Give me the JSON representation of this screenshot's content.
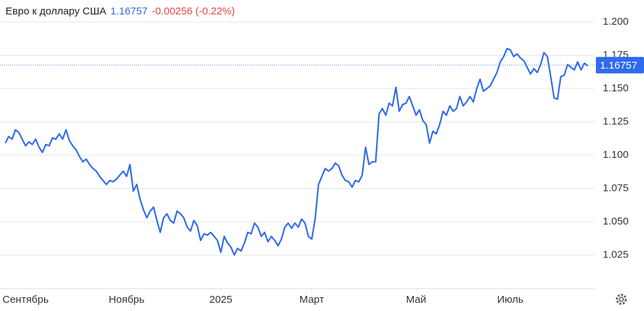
{
  "chart_data": {
    "type": "line",
    "title": "Евро к доллару США",
    "last_value": 1.16757,
    "change_label": "-0.00256 (-0.22%)",
    "color": "#2f6bed",
    "grid": true,
    "ylim": [
      1.0,
      1.21
    ],
    "yticks": [
      {
        "value": 1.2,
        "label": "1.200"
      },
      1.175,
      {
        "value": 1.15,
        "label": "1.150"
      },
      1.125,
      {
        "value": 1.1,
        "label": "1.100"
      },
      1.075,
      {
        "value": 1.05,
        "label": "1.050"
      },
      1.025
    ],
    "xlim": [
      -1.6,
      175
    ],
    "xticks": [
      {
        "value": 6,
        "label": "Сентябрь"
      },
      {
        "value": 36,
        "label": "Ноябрь"
      },
      {
        "value": 64,
        "label": "2025"
      },
      {
        "value": 91,
        "label": "Март"
      },
      {
        "value": 122,
        "label": "Май"
      },
      {
        "value": 150,
        "label": "Июль"
      }
    ],
    "values": [
      1.109,
      1.114,
      1.112,
      1.119,
      1.117,
      1.112,
      1.107,
      1.11,
      1.108,
      1.112,
      1.106,
      1.102,
      1.108,
      1.107,
      1.113,
      1.112,
      1.116,
      1.112,
      1.119,
      1.111,
      1.107,
      1.104,
      1.099,
      1.095,
      1.097,
      1.093,
      1.09,
      1.088,
      1.084,
      1.081,
      1.078,
      1.081,
      1.08,
      1.082,
      1.085,
      1.088,
      1.084,
      1.093,
      1.073,
      1.078,
      1.067,
      1.059,
      1.053,
      1.058,
      1.061,
      1.051,
      1.042,
      1.053,
      1.056,
      1.051,
      1.049,
      1.058,
      1.056,
      1.053,
      1.046,
      1.043,
      1.051,
      1.047,
      1.036,
      1.041,
      1.04,
      1.042,
      1.039,
      1.036,
      1.027,
      1.039,
      1.034,
      1.031,
      1.025,
      1.03,
      1.028,
      1.034,
      1.042,
      1.041,
      1.049,
      1.046,
      1.039,
      1.042,
      1.035,
      1.039,
      1.036,
      1.032,
      1.037,
      1.046,
      1.049,
      1.045,
      1.049,
      1.046,
      1.052,
      1.049,
      1.039,
      1.037,
      1.052,
      1.078,
      1.084,
      1.09,
      1.088,
      1.09,
      1.094,
      1.092,
      1.085,
      1.081,
      1.08,
      1.076,
      1.081,
      1.08,
      1.085,
      1.106,
      1.093,
      1.095,
      1.095,
      1.131,
      1.135,
      1.13,
      1.139,
      1.137,
      1.151,
      1.133,
      1.138,
      1.139,
      1.144,
      1.137,
      1.13,
      1.134,
      1.126,
      1.123,
      1.109,
      1.118,
      1.116,
      1.123,
      1.133,
      1.13,
      1.137,
      1.133,
      1.135,
      1.144,
      1.137,
      1.14,
      1.144,
      1.14,
      1.15,
      1.157,
      1.148,
      1.15,
      1.152,
      1.157,
      1.162,
      1.17,
      1.174,
      1.18,
      1.179,
      1.174,
      1.176,
      1.173,
      1.171,
      1.166,
      1.161,
      1.165,
      1.162,
      1.168,
      1.177,
      1.174,
      1.159,
      1.143,
      1.142,
      1.159,
      1.16,
      1.168,
      1.166,
      1.164,
      1.17,
      1.164,
      1.169,
      1.167
    ]
  }
}
